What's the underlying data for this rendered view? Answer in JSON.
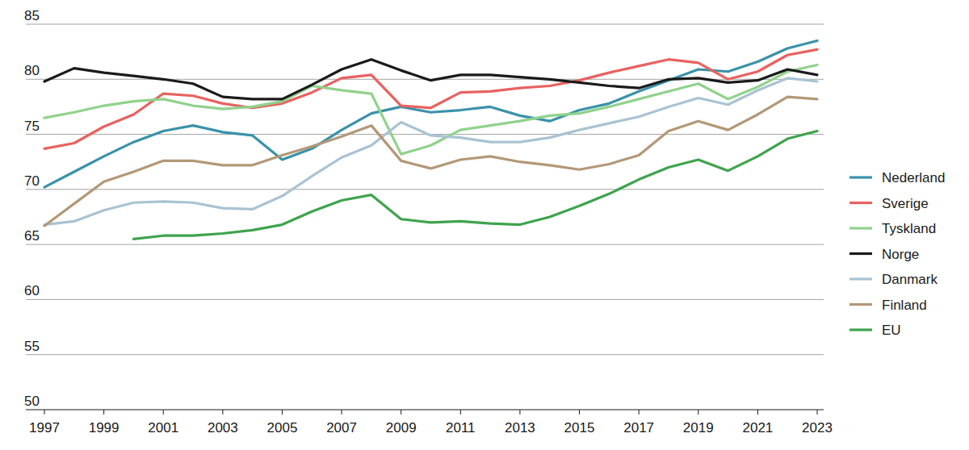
{
  "chart_data": {
    "type": "line",
    "x": [
      1997,
      1998,
      1999,
      2000,
      2001,
      2002,
      2003,
      2004,
      2005,
      2006,
      2007,
      2008,
      2009,
      2010,
      2011,
      2012,
      2013,
      2014,
      2015,
      2016,
      2017,
      2018,
      2019,
      2020,
      2021,
      2022,
      2023
    ],
    "xlim": [
      1997,
      2023
    ],
    "xticks": [
      1997,
      1999,
      2001,
      2003,
      2005,
      2007,
      2009,
      2011,
      2013,
      2015,
      2017,
      2019,
      2021,
      2023
    ],
    "ylim": [
      50,
      85
    ],
    "yticks": [
      50,
      55,
      60,
      65,
      70,
      75,
      80,
      85
    ],
    "grid": true,
    "legend": "right",
    "series": [
      {
        "name": "Nederland",
        "color": "#3a92a9",
        "values": [
          70.2,
          71.6,
          73.0,
          74.3,
          75.3,
          75.8,
          75.2,
          74.9,
          72.7,
          73.7,
          75.4,
          76.9,
          77.5,
          77.0,
          77.2,
          77.5,
          76.7,
          76.2,
          77.2,
          77.8,
          78.9,
          79.9,
          80.9,
          80.7,
          81.6,
          82.8,
          83.5
        ]
      },
      {
        "name": "Sverige",
        "color": "#e8625f",
        "values": [
          73.7,
          74.2,
          75.7,
          76.8,
          78.7,
          78.5,
          77.8,
          77.4,
          77.8,
          78.8,
          80.1,
          80.4,
          77.6,
          77.4,
          78.8,
          78.9,
          79.2,
          79.4,
          79.9,
          80.6,
          81.2,
          81.8,
          81.5,
          80.0,
          80.7,
          82.2,
          82.7
        ]
      },
      {
        "name": "Tyskland",
        "color": "#90d28c",
        "values": [
          76.5,
          77.0,
          77.6,
          78.0,
          78.2,
          77.6,
          77.3,
          77.5,
          78.0,
          79.4,
          79.0,
          78.7,
          73.2,
          74.0,
          75.4,
          75.8,
          76.2,
          76.7,
          76.9,
          77.5,
          78.2,
          78.9,
          79.6,
          78.2,
          79.3,
          80.7,
          81.3
        ]
      },
      {
        "name": "Norge",
        "color": "#1a1a1a",
        "values": [
          79.8,
          81.0,
          80.6,
          80.3,
          80.0,
          79.6,
          78.4,
          78.2,
          78.2,
          79.5,
          80.9,
          81.8,
          80.8,
          79.9,
          80.4,
          80.4,
          80.2,
          80.0,
          79.7,
          79.4,
          79.2,
          80.0,
          80.1,
          79.7,
          79.9,
          80.9,
          80.4
        ]
      },
      {
        "name": "Danmark",
        "color": "#a9c3d2",
        "values": [
          66.8,
          67.1,
          68.1,
          68.8,
          68.9,
          68.8,
          68.3,
          68.2,
          69.4,
          71.2,
          72.9,
          74.0,
          76.1,
          74.9,
          74.7,
          74.3,
          74.3,
          74.7,
          75.4,
          76.0,
          76.6,
          77.5,
          78.3,
          77.7,
          79.0,
          80.1,
          79.8
        ]
      },
      {
        "name": "Finland",
        "color": "#b39877",
        "values": [
          66.7,
          68.7,
          70.7,
          71.6,
          72.6,
          72.6,
          72.2,
          72.2,
          73.1,
          73.9,
          74.8,
          75.8,
          72.6,
          71.9,
          72.7,
          73.0,
          72.5,
          72.2,
          71.8,
          72.3,
          73.1,
          75.3,
          76.2,
          75.4,
          76.8,
          78.4,
          78.2
        ]
      },
      {
        "name": "EU",
        "color": "#3fa34d",
        "values": [
          null,
          null,
          null,
          65.5,
          65.8,
          65.8,
          66.0,
          66.3,
          66.8,
          68.0,
          69.0,
          69.5,
          67.3,
          67.0,
          67.1,
          66.9,
          66.8,
          67.5,
          68.5,
          69.6,
          70.9,
          72.0,
          72.7,
          71.7,
          73.0,
          74.6,
          75.3
        ]
      }
    ]
  }
}
